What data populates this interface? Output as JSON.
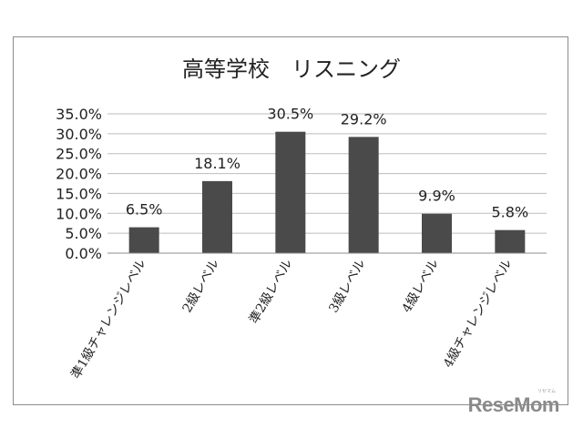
{
  "chart_data": {
    "type": "bar",
    "title": "高等学校　リスニング",
    "categories": [
      "準1級チャレンジレベル",
      "2級レベル",
      "準2級レベル",
      "3級レベル",
      "4級レベル",
      "4級チャレンジレベル"
    ],
    "values": [
      6.5,
      18.1,
      30.5,
      29.2,
      9.9,
      5.8
    ],
    "data_labels": [
      "6.5%",
      "18.1%",
      "30.5%",
      "29.2%",
      "9.9%",
      "5.8%"
    ],
    "y_ticks": [
      "0.0%",
      "5.0%",
      "10.0%",
      "15.0%",
      "20.0%",
      "25.0%",
      "30.0%",
      "35.0%"
    ],
    "ylim": [
      0,
      35
    ],
    "grid": true,
    "bar_color": "#4a4a4a",
    "grid_color": "#bdbdbd"
  },
  "watermark": {
    "main": "ReseMom",
    "small": "リセマム"
  }
}
